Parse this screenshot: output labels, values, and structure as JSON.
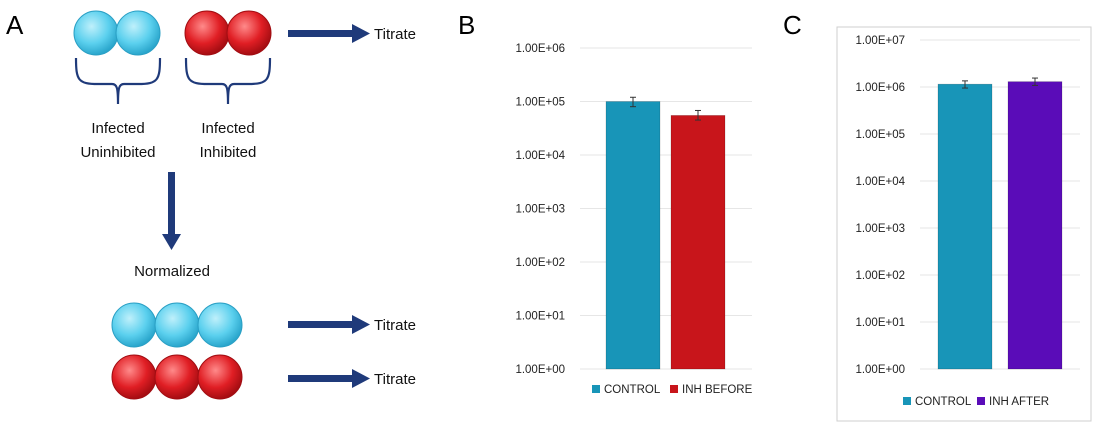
{
  "panels": {
    "a": "A",
    "b": "B",
    "c": "C"
  },
  "diagram": {
    "group1_line1": "Infected",
    "group1_line2": "Uninhibited",
    "group2_line1": "Infected",
    "group2_line2": "Inhibited",
    "normalized": "Normalized",
    "titrate_top": "Titrate",
    "titrate_mid": "Titrate",
    "titrate_bottom": "Titrate",
    "colors": {
      "blue": "#5bd0ee",
      "red": "#e01e24",
      "arrow": "#1f3a7a"
    }
  },
  "chart_data": [
    {
      "type": "bar",
      "panel": "B",
      "categories": [
        "CONTROL",
        "INH BEFORE"
      ],
      "values": [
        100000,
        55000
      ],
      "error_low": [
        80000,
        45000
      ],
      "error_high": [
        120000,
        68000
      ],
      "colors": [
        "#1895b8",
        "#c8151b"
      ],
      "log_scale": true,
      "ylim": [
        1,
        1000000
      ],
      "yticks": [
        "1.00E+00",
        "1.00E+01",
        "1.00E+02",
        "1.00E+03",
        "1.00E+04",
        "1.00E+05",
        "1.00E+06"
      ],
      "legend": [
        "CONTROL",
        "INH BEFORE"
      ],
      "legend_position": "bottom",
      "grid": true
    },
    {
      "type": "bar",
      "panel": "C",
      "categories": [
        "CONTROL",
        "INH AFTER"
      ],
      "values": [
        1150000,
        1300000
      ],
      "error_low": [
        950000,
        1080000
      ],
      "error_high": [
        1350000,
        1550000
      ],
      "colors": [
        "#1895b8",
        "#5a0cb8"
      ],
      "log_scale": true,
      "ylim": [
        1,
        10000000
      ],
      "yticks": [
        "1.00E+00",
        "1.00E+01",
        "1.00E+02",
        "1.00E+03",
        "1.00E+04",
        "1.00E+05",
        "1.00E+06",
        "1.00E+07"
      ],
      "legend": [
        "CONTROL",
        "INH AFTER"
      ],
      "legend_position": "bottom",
      "grid": true
    }
  ]
}
